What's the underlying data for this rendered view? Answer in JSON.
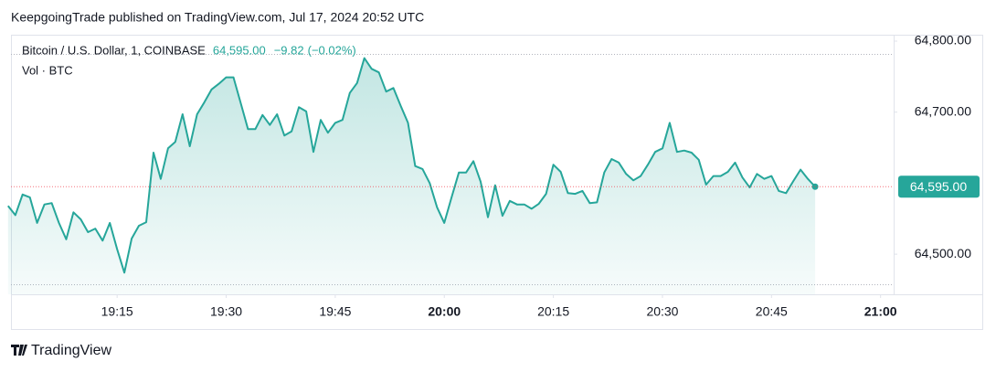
{
  "header": "KeepgoingTrade published on TradingView.com, Jul 17, 2024 20:52 UTC",
  "footer_logo": "TradingView",
  "chart_data": {
    "type": "area",
    "legend": {
      "symbol": "Bitcoin / U.S. Dollar, 1, COINBASE",
      "price": {
        "value": 64595,
        "label": "64,595.00"
      },
      "change": {
        "value": -9.82,
        "label": "−9.82"
      },
      "change_pct": {
        "value": -0.02,
        "label": "(−0.02%)"
      },
      "volume": "Vol · BTC"
    },
    "last_price": {
      "value": 64595,
      "label": "64,595.00"
    },
    "color": "#26a69a",
    "last_price_color": "#26a69a",
    "x": [
      1140,
      1141,
      1142,
      1143,
      1144,
      1145,
      1146,
      1147,
      1148,
      1149,
      1150,
      1151,
      1152,
      1153,
      1154,
      1155,
      1156,
      1157,
      1158,
      1159,
      1160,
      1161,
      1162,
      1163,
      1164,
      1165,
      1166,
      1167,
      1168,
      1169,
      1170,
      1171,
      1172,
      1173,
      1174,
      1175,
      1176,
      1177,
      1178,
      1179,
      1180,
      1181,
      1182,
      1183,
      1184,
      1185,
      1186,
      1187,
      1188,
      1189,
      1190,
      1191,
      1192,
      1193,
      1194,
      1195,
      1196,
      1197,
      1198,
      1199,
      1200,
      1201,
      1202,
      1203,
      1204,
      1205,
      1206,
      1207,
      1208,
      1209,
      1210,
      1211,
      1212,
      1213,
      1214,
      1215,
      1216,
      1217,
      1218,
      1219,
      1220,
      1221,
      1222,
      1223,
      1224,
      1225,
      1226,
      1227,
      1228,
      1229,
      1230,
      1231,
      1232,
      1233,
      1234,
      1235,
      1236,
      1237,
      1238,
      1239,
      1240,
      1241,
      1242,
      1243,
      1244,
      1245,
      1246,
      1247,
      1248,
      1249,
      1250,
      1251
    ],
    "series": [
      {
        "name": "Bitcoin / U.S. Dollar",
        "color": "#26a69a",
        "values": [
          64568,
          64555,
          64584,
          64580,
          64544,
          64570,
          64572,
          64544,
          64521,
          64559,
          64549,
          64531,
          64536,
          64519,
          64544,
          64507,
          64474,
          64522,
          64540,
          64545,
          64643,
          64606,
          64649,
          64658,
          64697,
          64652,
          64697,
          64714,
          64732,
          64740,
          64749,
          64749,
          64713,
          64676,
          64676,
          64696,
          64682,
          64697,
          64667,
          64673,
          64707,
          64701,
          64644,
          64689,
          64671,
          64685,
          64689,
          64727,
          64741,
          64776,
          64761,
          64756,
          64729,
          64734,
          64709,
          64685,
          64624,
          64620,
          64600,
          64566,
          64544,
          64580,
          64615,
          64615,
          64631,
          64602,
          64552,
          64597,
          64554,
          64575,
          64570,
          64570,
          64564,
          64571,
          64585,
          64626,
          64616,
          64586,
          64585,
          64589,
          64572,
          64573,
          64615,
          64634,
          64629,
          64613,
          64604,
          64610,
          64626,
          64644,
          64649,
          64685,
          64644,
          64646,
          64643,
          64633,
          64598,
          64610,
          64610,
          64616,
          64629,
          64608,
          64594,
          64613,
          64606,
          64610,
          64589,
          64586,
          64603,
          64619,
          64606,
          64595
        ]
      }
    ],
    "xlim": [
      1140.4,
      1261.8
    ],
    "xticks": [
      {
        "value": 1155,
        "label": "19:15"
      },
      {
        "value": 1170,
        "label": "19:30"
      },
      {
        "value": 1185,
        "label": "19:45"
      },
      {
        "value": 1200,
        "label": "20:00"
      },
      {
        "value": 1215,
        "label": "20:15"
      },
      {
        "value": 1230,
        "label": "20:30"
      },
      {
        "value": 1245,
        "label": "20:45"
      },
      {
        "value": 1260,
        "label": "21:00"
      }
    ],
    "ylim": [
      64443.5,
      64809
    ],
    "yticks": [
      {
        "value": 64500,
        "label": "64,500.00"
      },
      {
        "value": 64700,
        "label": "64,700.00"
      },
      {
        "value": 64800,
        "label": "64,800.00"
      }
    ],
    "grid": false
  }
}
